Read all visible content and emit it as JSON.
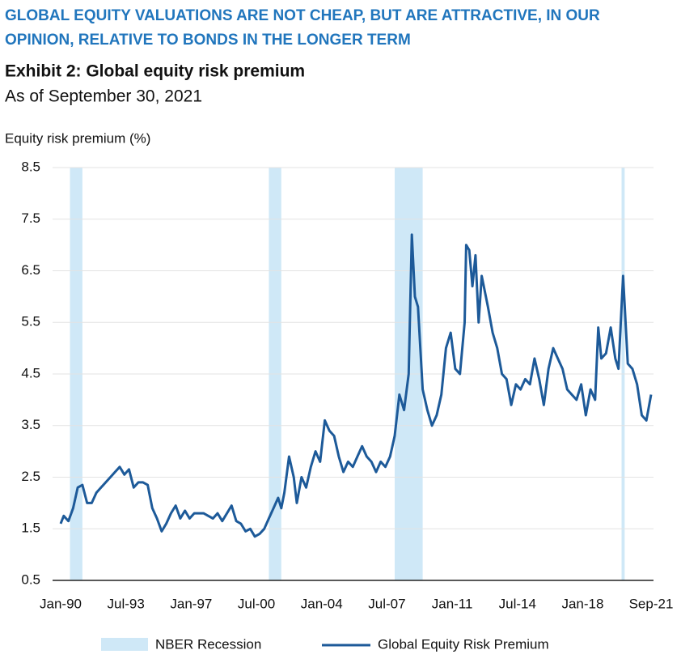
{
  "header": {
    "headline_1": "GLOBAL EQUITY VALUATIONS ARE NOT CHEAP, BUT ARE ATTRACTIVE, IN OUR",
    "headline_2": "OPINION, RELATIVE TO BONDS IN THE LONGER TERM"
  },
  "chart_data": {
    "type": "line",
    "title": "Exhibit 2: Global equity risk premium",
    "subtitle": "As of September 30, 2021",
    "y_label": "Equity risk premium (%)",
    "ylim": [
      0.5,
      8.5
    ],
    "yticks": [
      0.5,
      1.5,
      2.5,
      3.5,
      4.5,
      5.5,
      6.5,
      7.5,
      8.5
    ],
    "grid": true,
    "xlim": [
      "Jan-90",
      "Sep-21"
    ],
    "xticks": [
      "Jan-90",
      "Jul-93",
      "Jan-97",
      "Jul-00",
      "Jan-04",
      "Jul-07",
      "Jan-11",
      "Jul-14",
      "Jan-18",
      "Sep-21"
    ],
    "recessions": {
      "name": "NBER Recession",
      "color": "#cfe8f7",
      "periods": [
        [
          "Jul-90",
          "Mar-91"
        ],
        [
          "Mar-01",
          "Nov-01"
        ],
        [
          "Dec-07",
          "Jun-09"
        ],
        [
          "Feb-20",
          "Apr-20"
        ]
      ]
    },
    "x": [
      "Jan-90",
      "Mar-90",
      "Jun-90",
      "Sep-90",
      "Dec-90",
      "Mar-91",
      "Jun-91",
      "Sep-91",
      "Dec-91",
      "Mar-92",
      "Jun-92",
      "Sep-92",
      "Dec-92",
      "Mar-93",
      "Jun-93",
      "Sep-93",
      "Dec-93",
      "Mar-94",
      "Jun-94",
      "Sep-94",
      "Dec-94",
      "Mar-95",
      "Jun-95",
      "Sep-95",
      "Dec-95",
      "Mar-96",
      "Jun-96",
      "Sep-96",
      "Dec-96",
      "Mar-97",
      "Jun-97",
      "Sep-97",
      "Dec-97",
      "Mar-98",
      "Jun-98",
      "Sep-98",
      "Dec-98",
      "Mar-99",
      "Jun-99",
      "Sep-99",
      "Dec-99",
      "Mar-00",
      "Jun-00",
      "Sep-00",
      "Dec-00",
      "Mar-01",
      "Jun-01",
      "Sep-01",
      "Nov-01",
      "Jan-02",
      "Apr-02",
      "Jul-02",
      "Sep-02",
      "Dec-02",
      "Mar-03",
      "Jun-03",
      "Sep-03",
      "Dec-03",
      "Mar-04",
      "Jun-04",
      "Sep-04",
      "Dec-04",
      "Mar-05",
      "Jun-05",
      "Sep-05",
      "Dec-05",
      "Mar-06",
      "Jun-06",
      "Sep-06",
      "Dec-06",
      "Mar-07",
      "Jun-07",
      "Sep-07",
      "Dec-07",
      "Mar-08",
      "Jun-08",
      "Sep-08",
      "Nov-08",
      "Jan-09",
      "Mar-09",
      "Jun-09",
      "Sep-09",
      "Dec-09",
      "Mar-10",
      "Jun-10",
      "Sep-10",
      "Dec-10",
      "Mar-11",
      "Jun-11",
      "Sep-11",
      "Oct-11",
      "Dec-11",
      "Feb-12",
      "Apr-12",
      "Jun-12",
      "Aug-12",
      "Dec-12",
      "Mar-13",
      "Jun-13",
      "Sep-13",
      "Dec-13",
      "Mar-14",
      "Jun-14",
      "Sep-14",
      "Dec-14",
      "Mar-15",
      "Jun-15",
      "Sep-15",
      "Dec-15",
      "Mar-16",
      "Jun-16",
      "Sep-16",
      "Dec-16",
      "Mar-17",
      "Jun-17",
      "Sep-17",
      "Dec-17",
      "Mar-18",
      "Jun-18",
      "Sep-18",
      "Nov-18",
      "Jan-19",
      "Apr-19",
      "Jul-19",
      "Oct-19",
      "Dec-19",
      "Mar-20",
      "Jun-20",
      "Sep-20",
      "Dec-20",
      "Mar-21",
      "Jun-21",
      "Sep-21"
    ],
    "series": [
      {
        "name": "Global Equity Risk Premium",
        "color": "#1d5a99",
        "values": [
          1.6,
          1.75,
          1.65,
          1.9,
          2.3,
          2.35,
          2.0,
          2.0,
          2.2,
          2.3,
          2.4,
          2.5,
          2.6,
          2.7,
          2.55,
          2.65,
          2.3,
          2.4,
          2.4,
          2.35,
          1.9,
          1.7,
          1.45,
          1.6,
          1.8,
          1.95,
          1.7,
          1.85,
          1.7,
          1.8,
          1.8,
          1.8,
          1.75,
          1.7,
          1.8,
          1.65,
          1.8,
          1.95,
          1.65,
          1.6,
          1.45,
          1.5,
          1.35,
          1.4,
          1.5,
          1.7,
          1.9,
          2.1,
          1.9,
          2.2,
          2.9,
          2.5,
          2.0,
          2.5,
          2.3,
          2.7,
          3.0,
          2.8,
          3.6,
          3.4,
          3.3,
          2.9,
          2.6,
          2.8,
          2.7,
          2.9,
          3.1,
          2.9,
          2.8,
          2.6,
          2.8,
          2.7,
          2.9,
          3.3,
          4.1,
          3.8,
          4.5,
          7.2,
          6.0,
          5.8,
          4.2,
          3.8,
          3.5,
          3.7,
          4.1,
          5.0,
          5.3,
          4.6,
          4.5,
          5.5,
          7.0,
          6.9,
          6.2,
          6.8,
          5.5,
          6.4,
          5.8,
          5.3,
          5.0,
          4.5,
          4.4,
          3.9,
          4.3,
          4.2,
          4.4,
          4.3,
          4.8,
          4.4,
          3.9,
          4.6,
          5.0,
          4.8,
          4.6,
          4.2,
          4.1,
          4.0,
          4.3,
          3.7,
          4.2,
          4.0,
          5.4,
          4.8,
          4.9,
          5.4,
          4.8,
          4.6,
          6.4,
          4.7,
          4.6,
          4.3,
          3.7,
          3.6,
          4.1
        ]
      }
    ]
  }
}
